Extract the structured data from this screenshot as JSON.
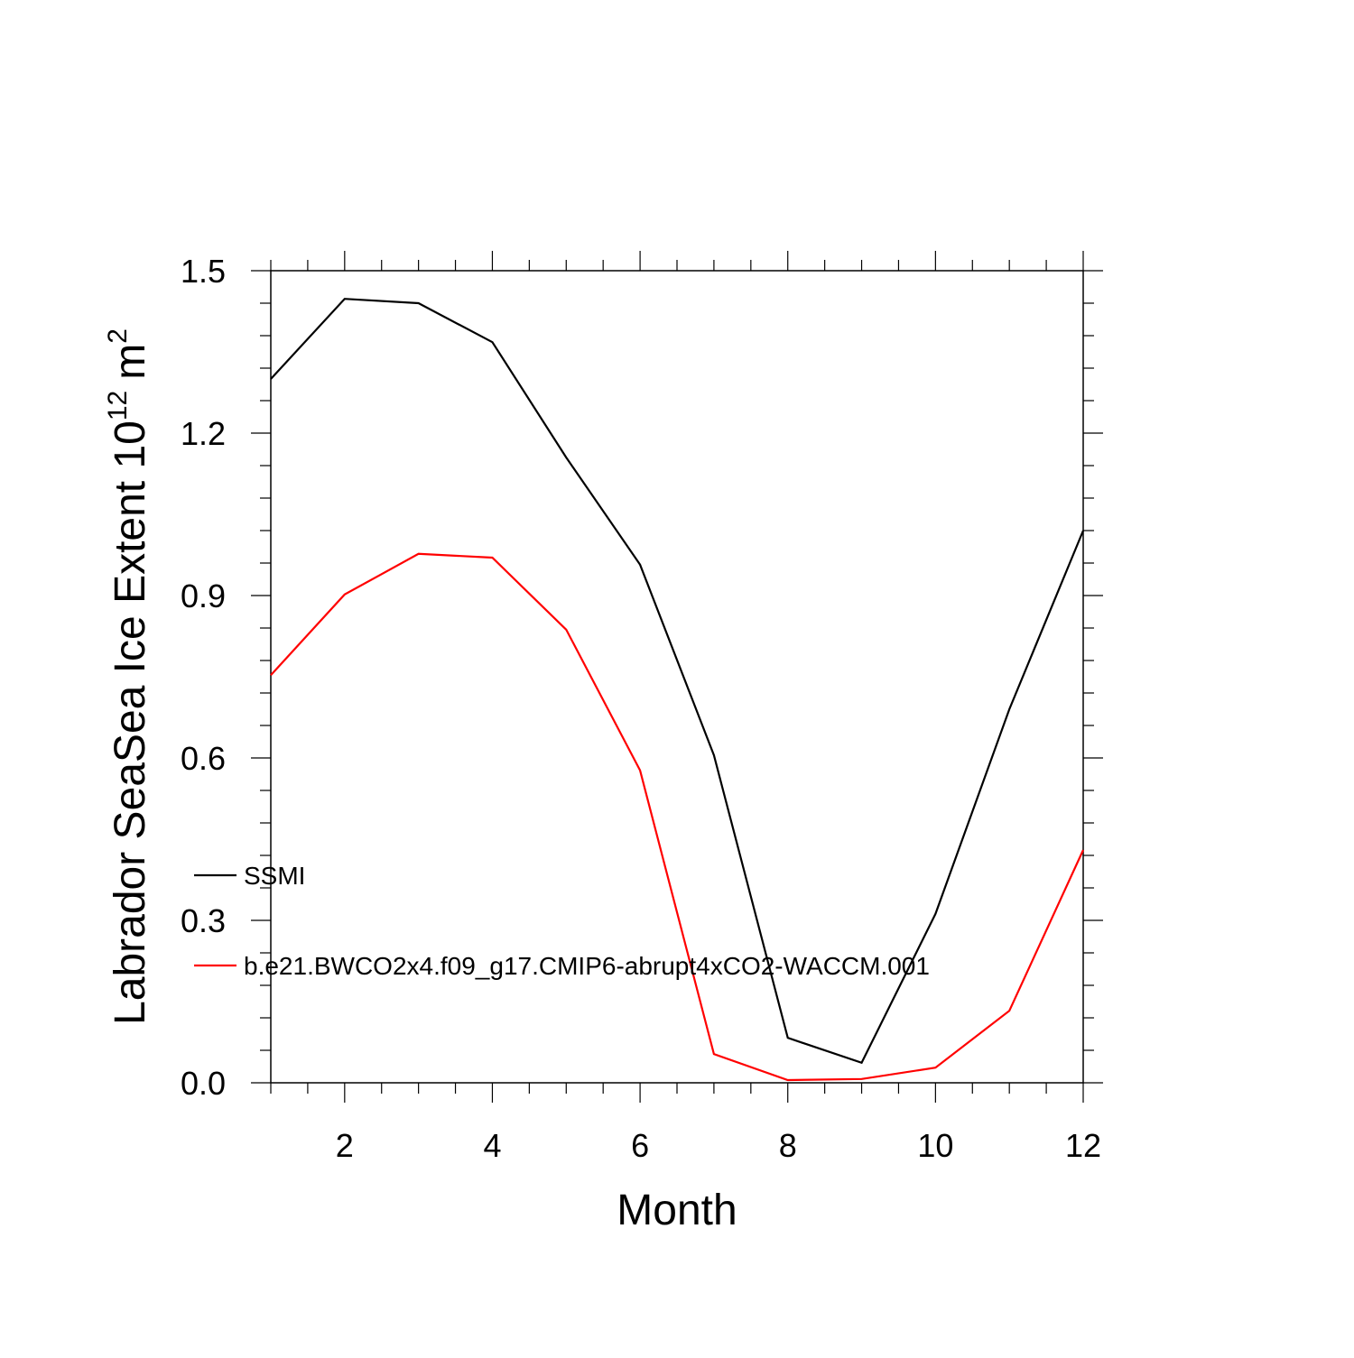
{
  "chart_data": {
    "type": "line",
    "xlabel": "Month",
    "ylabel": {
      "text": "Labrador SeaSea Ice Extent 10",
      "exp1": "12",
      "unit": "m",
      "exp2": "2"
    },
    "x": [
      1,
      2,
      3,
      4,
      5,
      6,
      7,
      8,
      9,
      10,
      11,
      12
    ],
    "series": [
      {
        "name": "SSMI",
        "color": "#000000",
        "values": [
          1.3,
          1.448,
          1.44,
          1.368,
          1.155,
          0.957,
          0.605,
          0.083,
          0.037,
          0.312,
          0.69,
          1.02
        ]
      },
      {
        "name": "b.e21.BWCO2x4.f09_g17.CMIP6-abrupt4xCO2-WACCM.001",
        "color": "#ff0000",
        "values": [
          0.753,
          0.902,
          0.977,
          0.97,
          0.837,
          0.577,
          0.053,
          0.005,
          0.007,
          0.028,
          0.133,
          0.43
        ]
      }
    ],
    "xlim": [
      1,
      12
    ],
    "ylim": [
      0,
      1.5
    ],
    "xticks": [
      2,
      4,
      6,
      8,
      10,
      12
    ],
    "yticks": [
      {
        "value": 0,
        "label": "0.0"
      },
      0.3,
      0.6,
      0.9,
      1.2,
      1.5
    ],
    "legend": "left"
  }
}
